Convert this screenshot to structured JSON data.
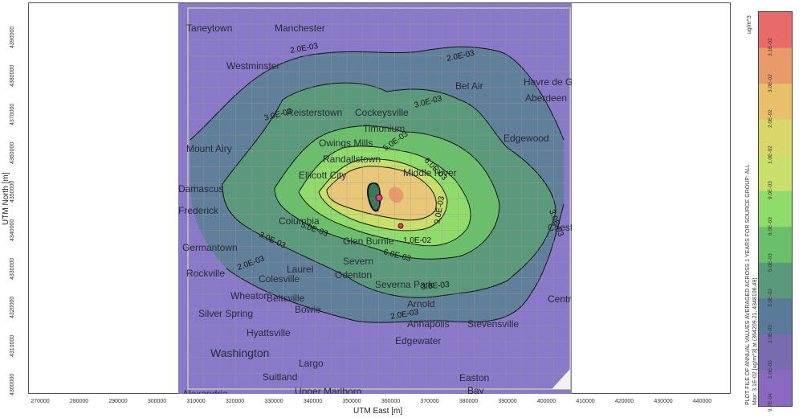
{
  "axes": {
    "x_title": "UTM East [m]",
    "y_title": "UTM North [m]",
    "x_ticks": [
      "270000",
      "280000",
      "290000",
      "300000",
      "310000",
      "320000",
      "330000",
      "340000",
      "350000",
      "360000",
      "370000",
      "380000",
      "390000",
      "400000",
      "410000",
      "420000",
      "430000",
      "440000"
    ],
    "y_ticks": [
      "4390000",
      "4380000",
      "4370000",
      "4360000",
      "4350000",
      "4340000",
      "4330000",
      "4320000",
      "4310000",
      "4300000"
    ]
  },
  "colorbar": {
    "unit": "ug/m^3",
    "levels": [
      "3.1E-02",
      "3.0E-02",
      "2.0E-02",
      "1.0E-02",
      "9.0E-03",
      "6.0E-03",
      "5.0E-03",
      "3.0E-03",
      "2.0E-03",
      "1.0E-03",
      "9.7E-04"
    ],
    "colors": [
      "#e86a6a",
      "#e89a6a",
      "#e8c06a",
      "#d8d86a",
      "#c8e06a",
      "#8fdc6a",
      "#6ac06a",
      "#5a9a7a",
      "#5a7a9a",
      "#7a6ab0",
      "#8a6ac0"
    ],
    "caption": "PLOT FILE OF ANNUAL VALUES AVERAGED ACROSS 1 YEARS FOR SOURCE GROUP: ALL",
    "max_note": "Max: 3.1E-02 [ug/m^3] at (364209.21, 4348106.49)"
  },
  "contours": {
    "labels": [
      "2.0E-03",
      "2.0E-03",
      "3.0E-03",
      "3.0E-03",
      "5.0E-03",
      "6.0E-03",
      "9.0E-03",
      "1.0E-02",
      "6.0E-03",
      "5.0E-03",
      "3.0E-03",
      "3.0E-03",
      "2.0E-03",
      "2.0E-03",
      "3.0E-03"
    ]
  },
  "places": [
    "Taneytown",
    "Manchester",
    "Westminster",
    "Bel Air",
    "Havre de Grace",
    "Aberdeen",
    "Reisterstown",
    "Cockeysville",
    "Timonium",
    "Owings Mills",
    "Randallstown",
    "Mount Airy",
    "Edgewood",
    "Middle River",
    "Ellicott City",
    "Damascus",
    "Columbia",
    "Glen Burnie",
    "Germantown",
    "Laurel",
    "Severn",
    "Odenton",
    "Rockville",
    "Colesville",
    "Wheaton",
    "Severna Park",
    "Arnold",
    "Silver Spring",
    "Beltsville",
    "Bowie",
    "Hyattsville",
    "Annapolis",
    "Stevensville",
    "Chester",
    "Centreville",
    "Washington",
    "Edgewater",
    "Largo",
    "Suitland",
    "Upper Marlboro",
    "Alexandria",
    "Easton",
    "Bay",
    "Frederick"
  ]
}
